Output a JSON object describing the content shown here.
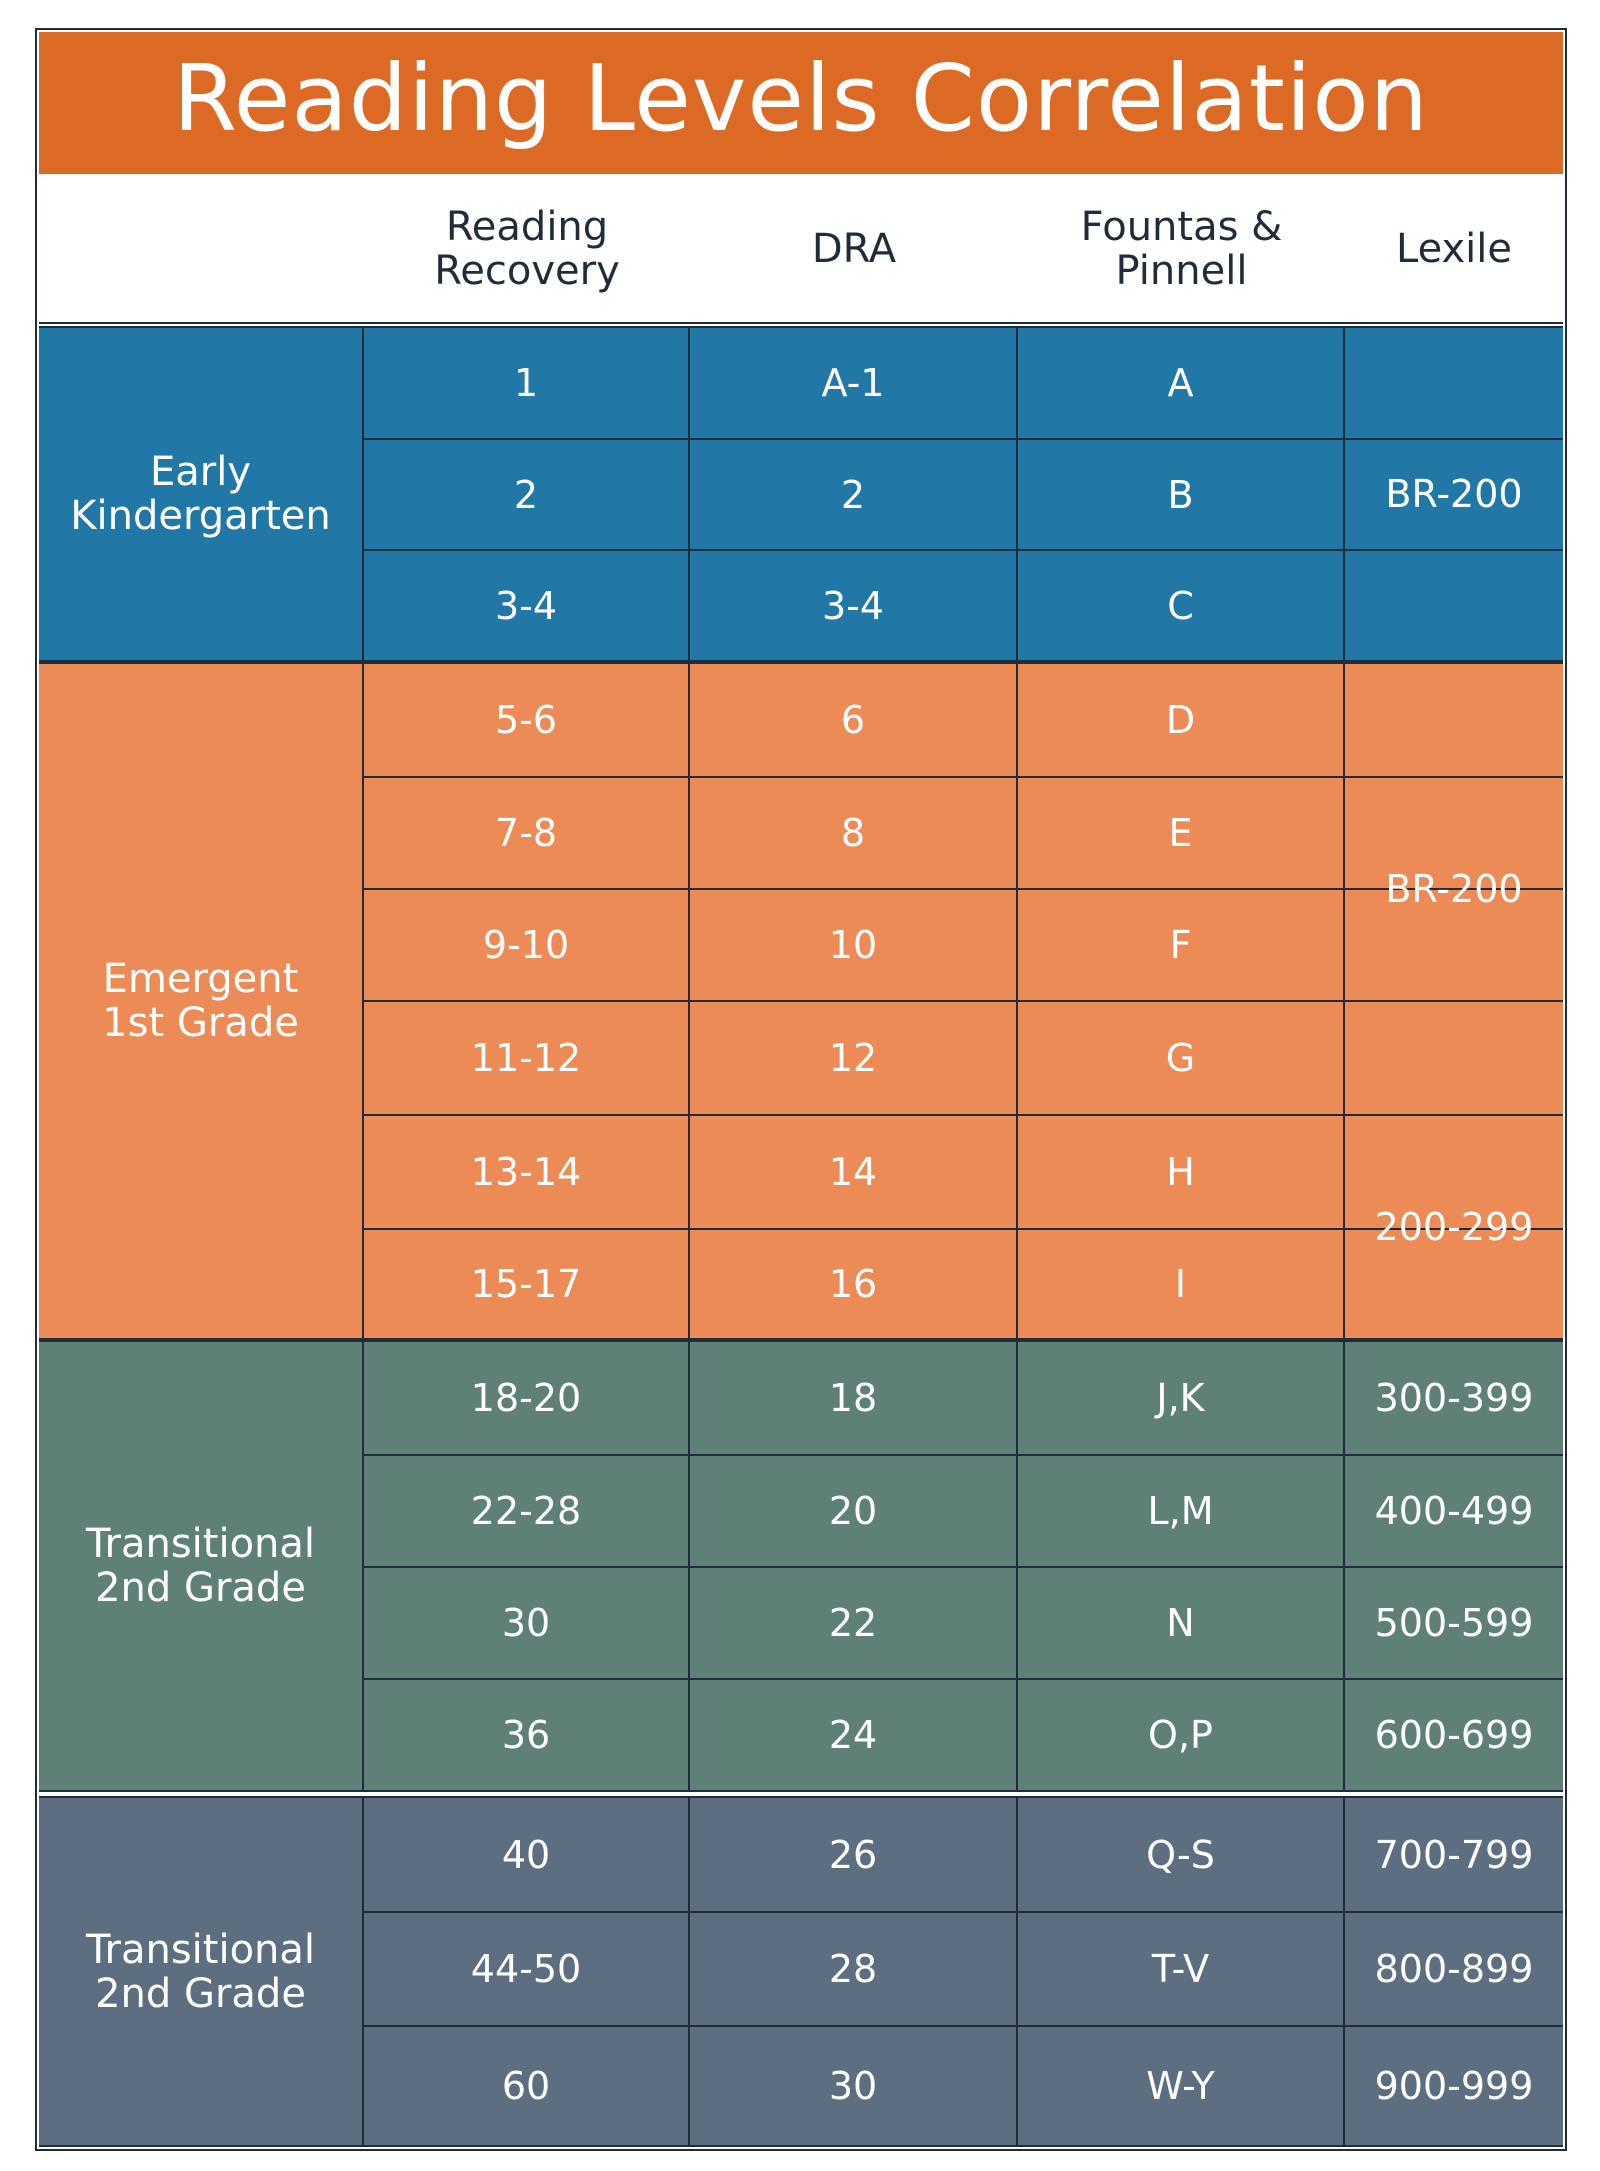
{
  "title": "Reading Levels Correlation",
  "columns": {
    "reading_recovery": "Reading\nRecovery",
    "dra": "DRA",
    "fountas_pinnell": "Fountas &\nPinnell",
    "lexile": "Lexile"
  },
  "sections": [
    {
      "label": "Early\nKindergarten",
      "color": "#2177a6",
      "rows": [
        {
          "rr": "1",
          "dra": "A-1",
          "fp": "A"
        },
        {
          "rr": "2",
          "dra": "2",
          "fp": "B"
        },
        {
          "rr": "3-4",
          "dra": "3-4",
          "fp": "C"
        }
      ],
      "lexile_groups": [
        {
          "value": "BR-200",
          "span": 3
        }
      ]
    },
    {
      "label": "Emergent\n1st Grade",
      "color": "#ec8b56",
      "rows": [
        {
          "rr": "5-6",
          "dra": "6",
          "fp": "D"
        },
        {
          "rr": "7-8",
          "dra": "8",
          "fp": "E"
        },
        {
          "rr": "9-10",
          "dra": "10",
          "fp": "F"
        },
        {
          "rr": "11-12",
          "dra": "12",
          "fp": "G"
        },
        {
          "rr": "13-14",
          "dra": "14",
          "fp": "H"
        },
        {
          "rr": "15-17",
          "dra": "16",
          "fp": "I"
        }
      ],
      "lexile_groups": [
        {
          "value": "BR-200",
          "span": 4
        },
        {
          "value": "200-299",
          "span": 2
        }
      ]
    },
    {
      "label": "Transitional\n2nd Grade",
      "color": "#5f8076",
      "rows": [
        {
          "rr": "18-20",
          "dra": "18",
          "fp": "J,K",
          "lex": "300-399"
        },
        {
          "rr": "22-28",
          "dra": "20",
          "fp": "L,M",
          "lex": "400-499"
        },
        {
          "rr": "30",
          "dra": "22",
          "fp": "N",
          "lex": "500-599"
        },
        {
          "rr": "36",
          "dra": "24",
          "fp": "O,P",
          "lex": "600-699"
        }
      ]
    },
    {
      "label": "Transitional\n2nd Grade",
      "color": "#5d6e80",
      "rows": [
        {
          "rr": "40",
          "dra": "26",
          "fp": "Q-S",
          "lex": "700-799"
        },
        {
          "rr": "44-50",
          "dra": "28",
          "fp": "T-V",
          "lex": "800-899"
        },
        {
          "rr": "60",
          "dra": "30",
          "fp": "W-Y",
          "lex": "900-999"
        }
      ]
    }
  ]
}
